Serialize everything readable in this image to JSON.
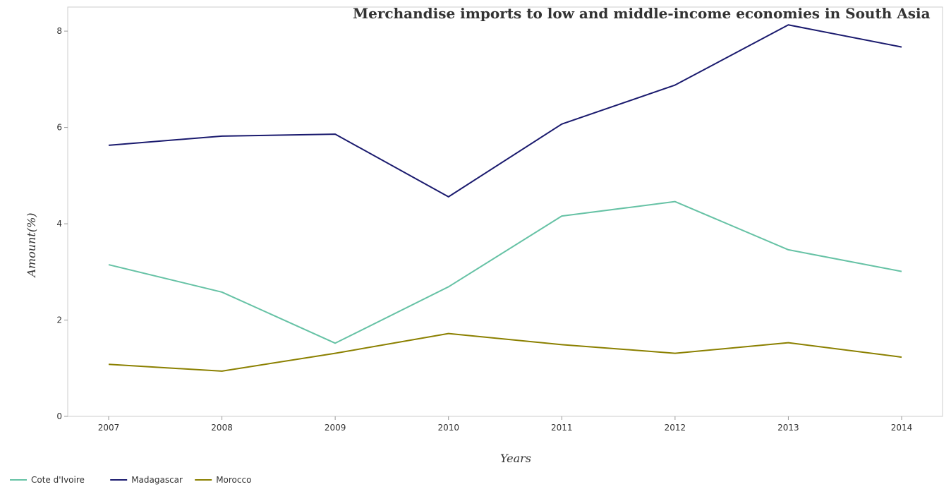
{
  "chart_data": {
    "type": "line",
    "title": "Merchandise imports to low and middle-income economies in South Asia",
    "xlabel": "Years",
    "ylabel": "Amount(%)",
    "categories": [
      "2007",
      "2008",
      "2009",
      "2010",
      "2011",
      "2012",
      "2013",
      "2014"
    ],
    "ylim": [
      0,
      8.5
    ],
    "yticks": [
      0,
      2,
      4,
      6,
      8
    ],
    "grid": false,
    "legend_position": "bottom-left",
    "series": [
      {
        "name": "Cote d'Ivoire",
        "color": "#66c2a5",
        "values": [
          3.15,
          2.58,
          1.52,
          2.69,
          4.16,
          4.46,
          3.46,
          3.01
        ]
      },
      {
        "name": "Madagascar",
        "color": "#1a1a6e",
        "values": [
          5.63,
          5.82,
          5.86,
          4.56,
          6.07,
          6.88,
          8.13,
          7.67
        ]
      },
      {
        "name": "Morocco",
        "color": "#8b8000",
        "values": [
          1.08,
          0.94,
          1.31,
          1.72,
          1.49,
          1.31,
          1.53,
          1.23
        ]
      }
    ]
  }
}
